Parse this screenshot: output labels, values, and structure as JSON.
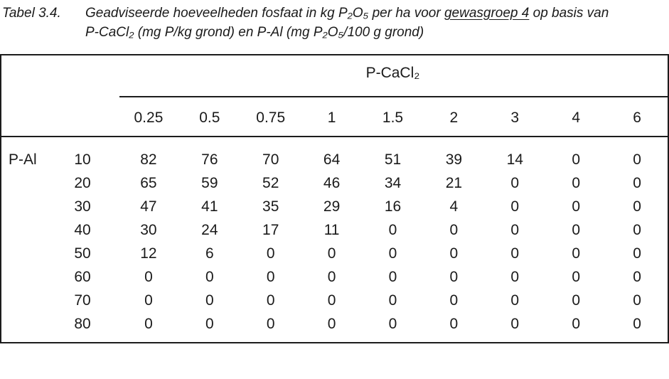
{
  "page": {
    "background": "#ffffff",
    "text_color": "#1a1a1a",
    "line_color": "#1c1c1c"
  },
  "caption": {
    "label": "Tabel 3.4.",
    "line1_pre": "Geadviseerde hoeveelheden fosfaat in kg P₂O₅ per ha voor ",
    "line1_underlined": "gewasgroep 4",
    "line1_post": " op basis van",
    "line2": "P-CaCl₂ (mg P/kg grond) en P-Al (mg P₂O₅/100 g grond)"
  },
  "table": {
    "column_group_header": "P-CaCl₂",
    "row_group_header": "P-Al",
    "column_headers": [
      "0.25",
      "0.5",
      "0.75",
      "1",
      "1.5",
      "2",
      "3",
      "4",
      "6"
    ],
    "rows": [
      {
        "label": "10",
        "values": [
          "82",
          "76",
          "70",
          "64",
          "51",
          "39",
          "14",
          "0",
          "0"
        ]
      },
      {
        "label": "20",
        "values": [
          "65",
          "59",
          "52",
          "46",
          "34",
          "21",
          "0",
          "0",
          "0"
        ]
      },
      {
        "label": "30",
        "values": [
          "47",
          "41",
          "35",
          "29",
          "16",
          "4",
          "0",
          "0",
          "0"
        ]
      },
      {
        "label": "40",
        "values": [
          "30",
          "24",
          "17",
          "11",
          "0",
          "0",
          "0",
          "0",
          "0"
        ]
      },
      {
        "label": "50",
        "values": [
          "12",
          "6",
          "0",
          "0",
          "0",
          "0",
          "0",
          "0",
          "0"
        ]
      },
      {
        "label": "60",
        "values": [
          "0",
          "0",
          "0",
          "0",
          "0",
          "0",
          "0",
          "0",
          "0"
        ]
      },
      {
        "label": "70",
        "values": [
          "0",
          "0",
          "0",
          "0",
          "0",
          "0",
          "0",
          "0",
          "0"
        ]
      },
      {
        "label": "80",
        "values": [
          "0",
          "0",
          "0",
          "0",
          "0",
          "0",
          "0",
          "0",
          "0"
        ]
      }
    ]
  }
}
